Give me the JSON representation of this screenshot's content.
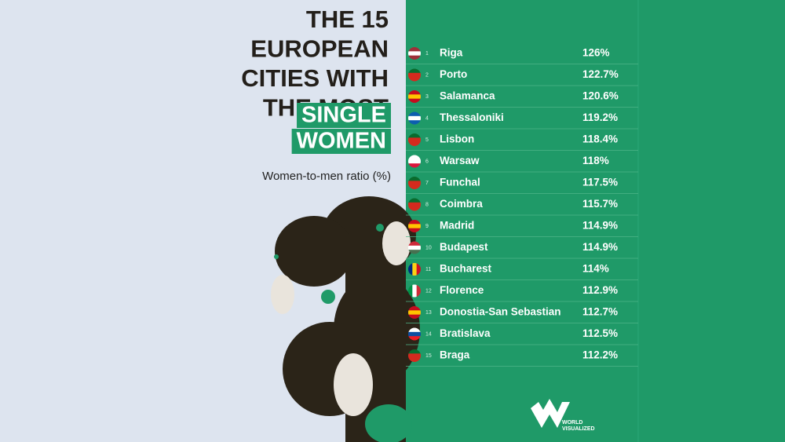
{
  "header": {
    "title_lines": [
      "THE 15",
      "EUROPEAN",
      "CITIES WITH",
      "THE MOST"
    ],
    "highlight_lines": [
      "SINGLE",
      "WOMEN"
    ],
    "subtitle": "Women-to-men ratio (%)"
  },
  "table": {
    "rows": [
      [
        "1",
        "Riga",
        "126%"
      ],
      [
        "2",
        "Porto",
        "122.7%"
      ],
      [
        "3",
        "Salamanca",
        "120.6%"
      ],
      [
        "4",
        "Thessaloniki",
        "119.2%"
      ],
      [
        "5",
        "Lisbon",
        "118.4%"
      ],
      [
        "6",
        "Warsaw",
        "118%"
      ],
      [
        "7",
        "Funchal",
        "117.5%"
      ],
      [
        "8",
        "Coimbra",
        "115.7%"
      ],
      [
        "9",
        "Madrid",
        "114.9%"
      ],
      [
        "10",
        "Budapest",
        "114.9%"
      ],
      [
        "11",
        "Bucharest",
        "114%"
      ],
      [
        "12",
        "Florence",
        "112.9%"
      ],
      [
        "13",
        "Donostia-San Sebastian",
        "112.7%"
      ],
      [
        "14",
        "Bratislava",
        "112.5%"
      ],
      [
        "15",
        "Braga",
        "112.2%"
      ]
    ]
  },
  "footer": {
    "logo_lines": [
      "WORLD",
      "VISUALIZED"
    ]
  }
}
